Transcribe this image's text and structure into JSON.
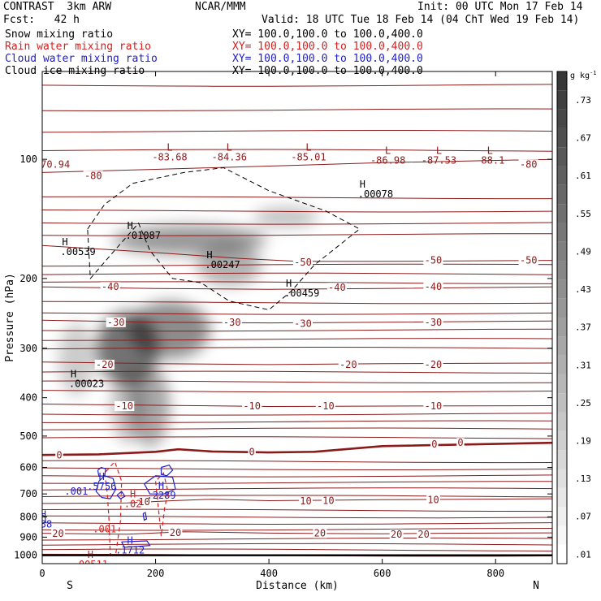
{
  "header": {
    "model": "CONTRAST  3km ARW",
    "forecast": "Fcst:   42 h",
    "org": "NCAR/MMM",
    "init": "Init: 00 UTC Mon 17 Feb 14",
    "valid": "Valid: 18 UTC Tue 18 Feb 14 (04 ChT Wed 19 Feb 14)",
    "fields": [
      {
        "name": "Snow mixing ratio",
        "xy": "XY= 100.0,100.0 to 100.0,400.0",
        "color": "#000000"
      },
      {
        "name": "Rain water mixing ratio",
        "xy": "XY= 100.0,100.0 to 100.0,400.0",
        "color": "#d42020"
      },
      {
        "name": "Cloud water mixing ratio",
        "xy": "XY= 100.0,100.0 to 100.0,400.0",
        "color": "#2020c8"
      },
      {
        "name": "Cloud ice mixing ratio",
        "xy": "XY= 100.0,100.0 to 100.0,400.0",
        "color": "#000000"
      }
    ]
  },
  "chart_data": {
    "type": "cross-section",
    "xlabel": "Distance (km)",
    "ylabel": "Pressure (hPa)",
    "xlim": [
      0,
      900
    ],
    "ylim": [
      1050,
      60
    ],
    "y_scale": "log",
    "x_ticks": [
      0,
      200,
      400,
      600,
      800
    ],
    "y_ticks": [
      100,
      200,
      300,
      400,
      500,
      600,
      700,
      800,
      900,
      1000
    ],
    "x_end_labels": {
      "left": "S",
      "right": "N"
    },
    "colorbar": {
      "unit": "g kg",
      "unit_exp": "-1",
      "labels": [
        ".01",
        ".07",
        ".13",
        ".19",
        ".25",
        ".31",
        ".37",
        ".43",
        ".49",
        ".55",
        ".61",
        ".67",
        ".73"
      ]
    },
    "colors": {
      "temperature": "#8b1a1a",
      "rain": "#d42020",
      "cloud_water": "#2020c8",
      "ice": "#000000",
      "ground": "#000000"
    },
    "temperature_contours": [
      {
        "label": "-80",
        "points": [
          [
            0,
            108
          ],
          [
            200,
            106
          ],
          [
            400,
            104
          ],
          [
            600,
            102
          ],
          [
            900,
            100
          ]
        ],
        "label_at": [
          [
            90,
            110
          ],
          [
            858,
            103
          ]
        ]
      },
      {
        "label": "-70.94",
        "points": [],
        "label_at": [
          [
            18,
            103
          ]
        ]
      },
      {
        "label": "-50",
        "points": [
          [
            0,
            165
          ],
          [
            200,
            172
          ],
          [
            350,
            178
          ],
          [
            450,
            181
          ],
          [
            600,
            181
          ],
          [
            900,
            180
          ]
        ],
        "label_at": [
          [
            460,
            182
          ],
          [
            690,
            180
          ],
          [
            858,
            180
          ]
        ]
      },
      {
        "label": "-40",
        "points": [
          [
            0,
            210
          ],
          [
            200,
            212
          ],
          [
            400,
            213
          ],
          [
            600,
            212
          ],
          [
            900,
            210
          ]
        ],
        "label_at": [
          [
            120,
            210
          ],
          [
            520,
            211
          ],
          [
            690,
            210
          ]
        ]
      },
      {
        "label": "-30",
        "points": [
          [
            0,
            255
          ],
          [
            200,
            258
          ],
          [
            400,
            259
          ],
          [
            600,
            258
          ],
          [
            900,
            256
          ]
        ],
        "label_at": [
          [
            130,
            258
          ],
          [
            335,
            258
          ],
          [
            460,
            260
          ],
          [
            690,
            258
          ]
        ]
      },
      {
        "label": "-20",
        "points": [
          [
            0,
            325
          ],
          [
            200,
            328
          ],
          [
            400,
            330
          ],
          [
            600,
            328
          ],
          [
            900,
            327
          ]
        ],
        "label_at": [
          [
            110,
            330
          ],
          [
            540,
            330
          ],
          [
            690,
            330
          ]
        ]
      },
      {
        "label": "-10",
        "points": [
          [
            0,
            415
          ],
          [
            200,
            418
          ],
          [
            400,
            421
          ],
          [
            600,
            420
          ],
          [
            900,
            419
          ]
        ],
        "label_at": [
          [
            145,
            420
          ],
          [
            370,
            420
          ],
          [
            500,
            420
          ],
          [
            690,
            420
          ]
        ]
      },
      {
        "label": "0",
        "points": [
          [
            0,
            558
          ],
          [
            100,
            556
          ],
          [
            200,
            548
          ],
          [
            240,
            540
          ],
          [
            300,
            547
          ],
          [
            400,
            550
          ],
          [
            480,
            548
          ],
          [
            600,
            530
          ],
          [
            900,
            520
          ]
        ],
        "label_at": [
          [
            30,
            559
          ],
          [
            370,
            549
          ],
          [
            692,
            524
          ],
          [
            738,
            520
          ]
        ]
      },
      {
        "label": "10",
        "points": [
          [
            0,
            740
          ],
          [
            150,
            738
          ],
          [
            230,
            728
          ],
          [
            300,
            722
          ],
          [
            400,
            728
          ],
          [
            600,
            724
          ],
          [
            900,
            720
          ]
        ],
        "label_at": [
          [
            180,
            733
          ],
          [
            465,
            730
          ],
          [
            505,
            728
          ],
          [
            690,
            724
          ]
        ]
      },
      {
        "label": "20",
        "points": [
          [
            0,
            880
          ],
          [
            150,
            885
          ],
          [
            250,
            872
          ],
          [
            400,
            879
          ],
          [
            600,
            883
          ],
          [
            700,
            880
          ],
          [
            900,
            878
          ]
        ],
        "label_at": [
          [
            28,
            882
          ],
          [
            235,
            877
          ],
          [
            490,
            880
          ],
          [
            625,
            885
          ],
          [
            673,
            885
          ]
        ]
      }
    ],
    "extra_temperature_lines": [
      65,
      75,
      85,
      95,
      125,
      135,
      145,
      155,
      185,
      195,
      205,
      230,
      245,
      270,
      285,
      300,
      345,
      365,
      385,
      440,
      460,
      480,
      505,
      580,
      605,
      630,
      655,
      680,
      710,
      770,
      800,
      830,
      860,
      910,
      940,
      970,
      1000
    ],
    "temperature_extrema": [
      {
        "type": "L",
        "value": "-83.68",
        "x": 225,
        "p": 95
      },
      {
        "type": "L",
        "value": "-84.36",
        "x": 330,
        "p": 95
      },
      {
        "type": "L",
        "value": "-85.01",
        "x": 470,
        "p": 95
      },
      {
        "type": "L",
        "value": "-86.98",
        "x": 610,
        "p": 97
      },
      {
        "type": "L",
        "value": "-87.53",
        "x": 700,
        "p": 97
      },
      {
        "type": "L",
        "value": "-88.1",
        "x": 790,
        "p": 97
      }
    ],
    "ice_contours": [
      {
        "label": ".001",
        "points": [
          [
            80,
            150
          ],
          [
            110,
            130
          ],
          [
            160,
            115
          ],
          [
            250,
            108
          ],
          [
            320,
            105
          ],
          [
            400,
            120
          ],
          [
            500,
            135
          ],
          [
            560,
            150
          ],
          [
            480,
            185
          ],
          [
            440,
            215
          ],
          [
            400,
            240
          ],
          [
            330,
            228
          ],
          [
            280,
            205
          ],
          [
            230,
            200
          ],
          [
            190,
            170
          ],
          [
            170,
            145
          ],
          [
            120,
            175
          ],
          [
            85,
            200
          ],
          [
            80,
            150
          ]
        ]
      }
    ],
    "ice_extrema": [
      {
        "type": "H",
        "value": ".00539",
        "x": 35,
        "p": 165
      },
      {
        "type": "H",
        "value": ".01087",
        "x": 150,
        "p": 150
      },
      {
        "type": "H",
        "value": ".00247",
        "x": 290,
        "p": 178
      },
      {
        "type": "H",
        "value": ".00459",
        "x": 430,
        "p": 210
      },
      {
        "type": "H",
        "value": ".00078",
        "x": 560,
        "p": 118
      },
      {
        "type": "H",
        "value": ".00023",
        "x": 50,
        "p": 355
      }
    ],
    "snow_field": [
      {
        "x": 150,
        "p": 300,
        "rx": 38,
        "ry": 45,
        "value": 0.55
      },
      {
        "x": 225,
        "p": 270,
        "rx": 50,
        "ry": 35,
        "value": 0.45
      },
      {
        "x": 260,
        "p": 160,
        "rx": 95,
        "ry": 18,
        "value": 0.4
      },
      {
        "x": 190,
        "p": 420,
        "rx": 25,
        "ry": 50,
        "value": 0.35
      },
      {
        "x": 330,
        "p": 185,
        "rx": 40,
        "ry": 25,
        "value": 0.3
      },
      {
        "x": 60,
        "p": 320,
        "rx": 22,
        "ry": 45,
        "value": 0.2
      },
      {
        "x": 430,
        "p": 140,
        "rx": 40,
        "ry": 12,
        "value": 0.25
      },
      {
        "x": 150,
        "p": 420,
        "rx": 20,
        "ry": 45,
        "value": 0.25
      }
    ],
    "rain_contours": [
      {
        "label": ".001",
        "points": [
          [
            110,
            620
          ],
          [
            115,
            700
          ],
          [
            118,
            820
          ],
          [
            120,
            990
          ],
          [
            125,
            1000
          ],
          [
            130,
            990
          ],
          [
            138,
            820
          ],
          [
            140,
            650
          ],
          [
            128,
            580
          ],
          [
            110,
            620
          ]
        ],
        "label_at": [
          [
            110,
            860
          ]
        ]
      },
      {
        "label": ".001",
        "points": [
          [
            200,
            650
          ],
          [
            205,
            760
          ],
          [
            210,
            895
          ],
          [
            216,
            760
          ],
          [
            222,
            690
          ],
          [
            214,
            620
          ],
          [
            200,
            650
          ]
        ],
        "label_at": []
      }
    ],
    "rain_extrema": [
      {
        "type": "H",
        "value": ".00511",
        "x": 85,
        "p": 1015
      },
      {
        "type": "H",
        "value": ".02",
        "x": 160,
        "p": 715
      }
    ],
    "cloudwater_contours": [
      {
        "label": ".001",
        "points": [
          [
            100,
            650
          ],
          [
            110,
            630
          ],
          [
            125,
            640
          ],
          [
            130,
            680
          ],
          [
            120,
            720
          ],
          [
            105,
            715
          ],
          [
            95,
            690
          ],
          [
            100,
            650
          ]
        ],
        "label_at": [
          [
            60,
            690
          ]
        ]
      },
      {
        "label": "",
        "points": [
          [
            98,
            610
          ],
          [
            104,
            600
          ],
          [
            112,
            605
          ],
          [
            110,
            630
          ],
          [
            100,
            632
          ],
          [
            98,
            610
          ]
        ],
        "label_at": []
      },
      {
        "label": "",
        "points": [
          [
            180,
            660
          ],
          [
            200,
            630
          ],
          [
            230,
            635
          ],
          [
            235,
            680
          ],
          [
            215,
            700
          ],
          [
            190,
            700
          ],
          [
            180,
            660
          ]
        ],
        "label_at": []
      },
      {
        "label": "",
        "points": [
          [
            210,
            600
          ],
          [
            224,
            592
          ],
          [
            230,
            610
          ],
          [
            220,
            630
          ],
          [
            210,
            625
          ],
          [
            210,
            600
          ]
        ],
        "label_at": []
      },
      {
        "label": "",
        "points": [
          [
            132,
            705
          ],
          [
            140,
            690
          ],
          [
            146,
            710
          ],
          [
            138,
            720
          ],
          [
            132,
            705
          ]
        ],
        "label_at": []
      },
      {
        "label": "",
        "points": [
          [
            0,
            790
          ],
          [
            5,
            800
          ],
          [
            6,
            825
          ],
          [
            0,
            830
          ]
        ],
        "label_at": []
      },
      {
        "label": "",
        "points": [
          [
            178,
            785
          ],
          [
            182,
            780
          ],
          [
            184,
            810
          ],
          [
            180,
            815
          ],
          [
            178,
            785
          ]
        ],
        "label_at": []
      },
      {
        "label": "",
        "points": [
          [
            140,
            925
          ],
          [
            185,
            920
          ],
          [
            190,
            945
          ],
          [
            145,
            955
          ],
          [
            140,
            925
          ]
        ],
        "label_at": []
      }
    ],
    "cloudwater_extrema": [
      {
        "type": "H",
        "value": ".5756",
        "x": 105,
        "p": 645
      },
      {
        "type": "H",
        "value": ".2289",
        "x": 210,
        "p": 680
      },
      {
        "type": "H",
        "value": ".1712",
        "x": 155,
        "p": 935
      },
      {
        "type": "H",
        "value": ".38",
        "x": 2,
        "p": 805
      }
    ]
  }
}
